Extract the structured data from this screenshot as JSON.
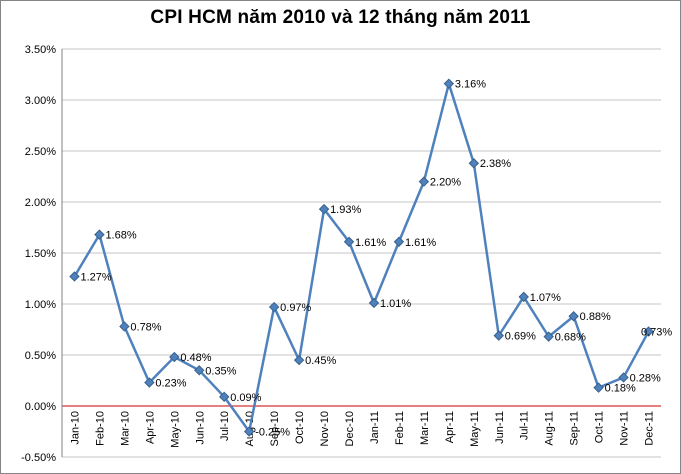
{
  "chart_data": {
    "type": "line",
    "title": "CPI HCM năm 2010 và 12 tháng năm 2011",
    "categories": [
      "Jan-10",
      "Feb-10",
      "Mar-10",
      "Apr-10",
      "May-10",
      "Jun-10",
      "Jul-10",
      "Aug-10",
      "Sep-10",
      "Oct-10",
      "Nov-10",
      "Dec-10",
      "Jan-11",
      "Feb-11",
      "Mar-11",
      "Apr-11",
      "May-11",
      "Jun-11",
      "Jul-11",
      "Aug-11",
      "Sep-11",
      "Oct-11",
      "Nov-11",
      "Dec-11"
    ],
    "values": [
      1.27,
      1.68,
      0.78,
      0.23,
      0.48,
      0.35,
      0.09,
      -0.25,
      0.97,
      0.45,
      1.93,
      1.61,
      1.01,
      1.61,
      2.2,
      3.16,
      2.38,
      0.69,
      1.07,
      0.68,
      0.88,
      0.18,
      0.28,
      0.73
    ],
    "point_labels": [
      "1.27%",
      "1.68%",
      "0.78%",
      "0.23%",
      "0.48%",
      "0.35%",
      "0.09%",
      "-0.25%",
      "0.97%",
      "0.45%",
      "1.93%",
      "1.61%",
      "1.01%",
      "1.61%",
      "2.20%",
      "3.16%",
      "2.38%",
      "0.69%",
      "1.07%",
      "0.68%",
      "0.88%",
      "0.18%",
      "0.28%",
      "0.73%"
    ],
    "xlabel": "",
    "ylabel": "",
    "ylim": [
      -0.5,
      3.5
    ],
    "y_tick_step": 0.5,
    "y_tick_labels": [
      "3.50%",
      "3.00%",
      "2.50%",
      "2.00%",
      "1.50%",
      "1.00%",
      "0.50%",
      "0.00%",
      "-0.50%"
    ],
    "grid": true,
    "legend": false,
    "marker": "diamond",
    "colors": {
      "line": "#4F81BD",
      "marker_fill": "#4F81BD",
      "marker_edge": "#38618C",
      "gridline": "#C6C6C6",
      "zero_line": "#CC0000",
      "axis_line": "#808080",
      "text": "#000000",
      "background": "#FFFFFF",
      "border": "#848484"
    }
  }
}
